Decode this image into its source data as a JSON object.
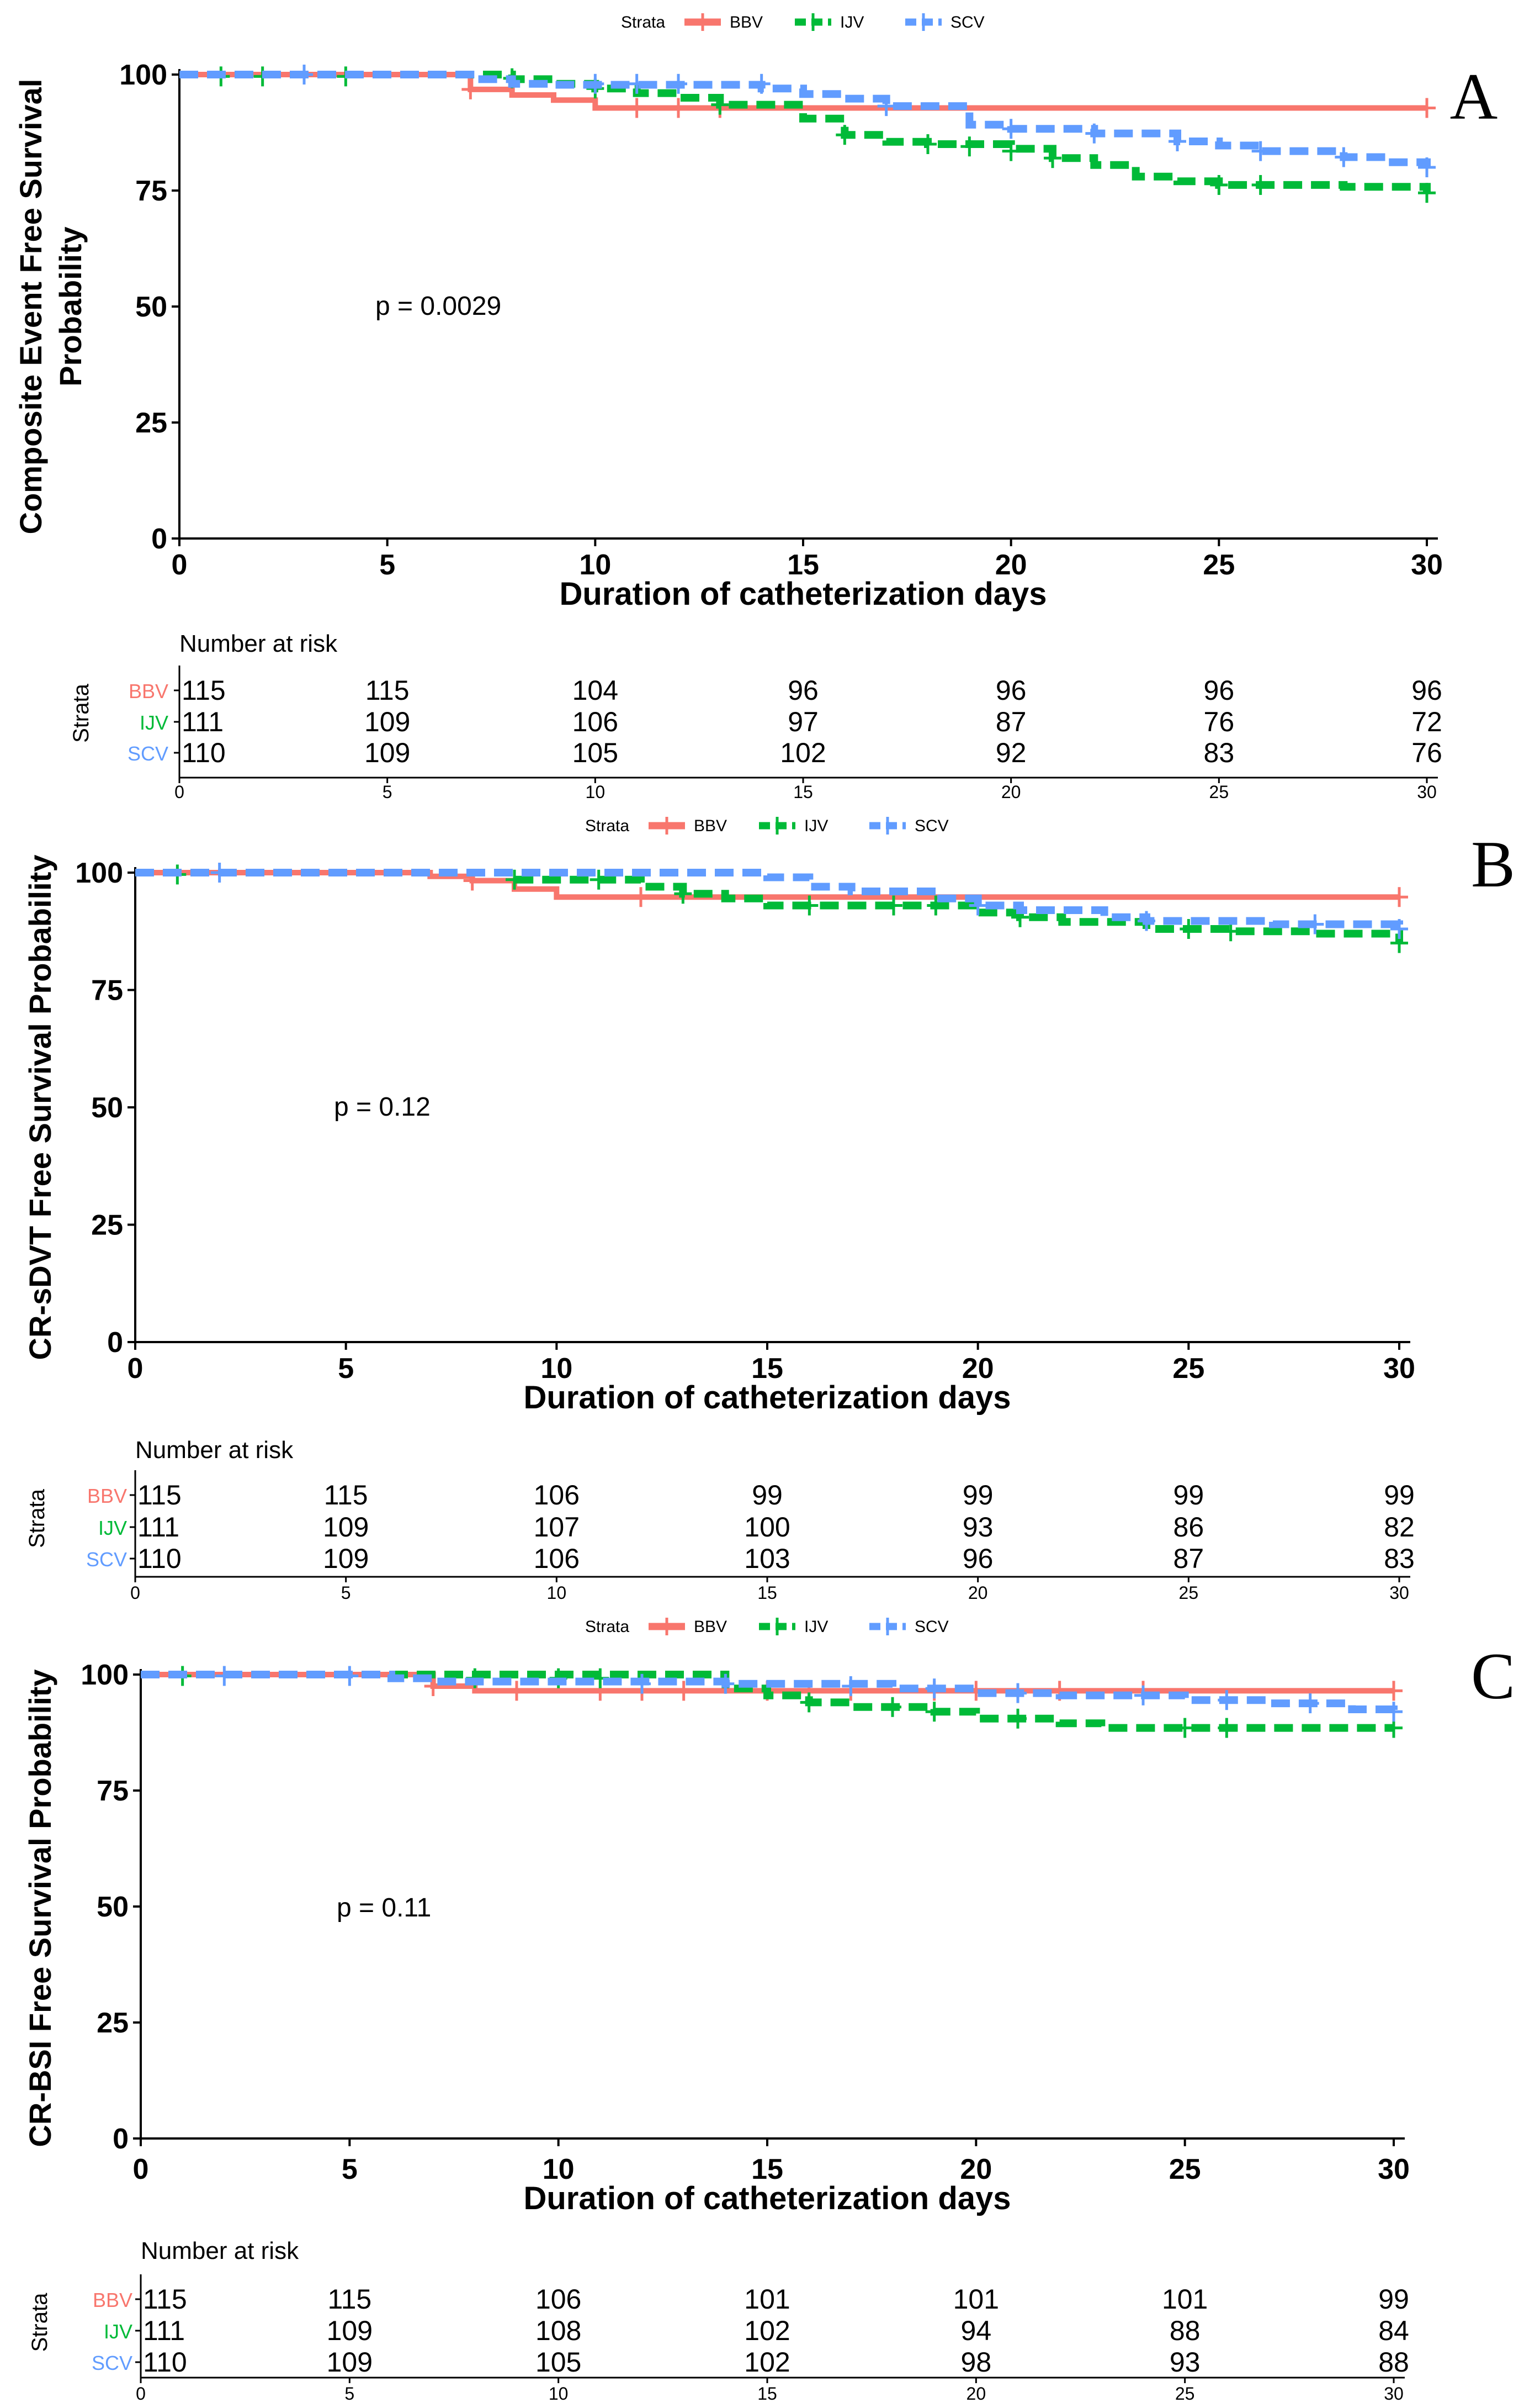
{
  "colors": {
    "BBV": "#F8766D",
    "IJV": "#00BA38",
    "SCV": "#619CFF"
  },
  "chart_data": [
    {
      "panel": "A",
      "type": "line",
      "title": "",
      "ylabel": "Composite Event Free Survival Probability",
      "ylabel_lines": [
        "Composite Event Free Survival",
        "Probability"
      ],
      "xlabel": "Duration of catheterization days",
      "xlim": [
        0,
        30
      ],
      "ylim": [
        0,
        100
      ],
      "xticks": [
        0,
        5,
        10,
        15,
        20,
        25,
        30
      ],
      "yticks": [
        0,
        25,
        50,
        75,
        100
      ],
      "pvalue": "p = 0.0029",
      "legend": {
        "title": "Strata",
        "entries": [
          "BBV",
          "IJV",
          "SCV"
        ],
        "position": "top"
      },
      "series": [
        {
          "name": "BBV",
          "style": "solid",
          "steps": [
            [
              0,
              100
            ],
            [
              7,
              96.8
            ],
            [
              8,
              95.6
            ],
            [
              9,
              94.5
            ],
            [
              10,
              92.8
            ],
            [
              30,
              92.8
            ]
          ],
          "censors": [
            [
              7,
              96.8
            ],
            [
              11,
              92.8
            ],
            [
              12,
              92.8
            ],
            [
              13,
              92.8
            ],
            [
              30,
              92.8
            ]
          ]
        },
        {
          "name": "IJV",
          "style": "dashed",
          "steps": [
            [
              0,
              100
            ],
            [
              8,
              99
            ],
            [
              9,
              98
            ],
            [
              10,
              97
            ],
            [
              11,
              96
            ],
            [
              12,
              95
            ],
            [
              13,
              93.5
            ],
            [
              15,
              90.5
            ],
            [
              16,
              87
            ],
            [
              17,
              85.5
            ],
            [
              18,
              85
            ],
            [
              20,
              84
            ],
            [
              21,
              82
            ],
            [
              22,
              80.5
            ],
            [
              23,
              78
            ],
            [
              24,
              77
            ],
            [
              25,
              76.2
            ],
            [
              27,
              76.2
            ],
            [
              28,
              75.8
            ],
            [
              30,
              74.5
            ]
          ],
          "censors": [
            [
              1,
              99.6
            ],
            [
              2,
              99.6
            ],
            [
              4,
              99.6
            ],
            [
              8,
              99.2
            ],
            [
              10,
              97
            ],
            [
              13,
              93.5
            ],
            [
              16,
              87
            ],
            [
              18,
              85
            ],
            [
              19,
              84.5
            ],
            [
              20,
              83.5
            ],
            [
              21,
              82
            ],
            [
              25,
              76.2
            ],
            [
              26,
              76.2
            ],
            [
              30,
              74.5
            ]
          ]
        },
        {
          "name": "SCV",
          "style": "dashed",
          "steps": [
            [
              0,
              100
            ],
            [
              7,
              99
            ],
            [
              8,
              98
            ],
            [
              9,
              97.8
            ],
            [
              14,
              97
            ],
            [
              15,
              95.8
            ],
            [
              16,
              94.8
            ],
            [
              17,
              93.2
            ],
            [
              19,
              89.2
            ],
            [
              20,
              88.3
            ],
            [
              22,
              87.3
            ],
            [
              24,
              85.6
            ],
            [
              25,
              84.7
            ],
            [
              26,
              83.5
            ],
            [
              28,
              82.2
            ],
            [
              29,
              81.1
            ],
            [
              30,
              80
            ]
          ],
          "censors": [
            [
              3,
              100
            ],
            [
              10,
              98
            ],
            [
              11,
              98
            ],
            [
              12,
              98
            ],
            [
              14,
              98
            ],
            [
              17,
              93.2
            ],
            [
              20,
              88.3
            ],
            [
              22,
              87.3
            ],
            [
              24,
              85.6
            ],
            [
              26,
              83.5
            ],
            [
              28,
              82.2
            ],
            [
              30,
              80
            ]
          ]
        }
      ],
      "risk_table": {
        "title": "Number at risk",
        "axis_label": "Strata",
        "times": [
          0,
          5,
          10,
          15,
          20,
          25,
          30
        ],
        "rows": [
          {
            "name": "BBV",
            "values": [
              115,
              115,
              104,
              96,
              96,
              96,
              96
            ]
          },
          {
            "name": "IJV",
            "values": [
              111,
              109,
              106,
              97,
              87,
              76,
              72
            ]
          },
          {
            "name": "SCV",
            "values": [
              110,
              109,
              105,
              102,
              92,
              83,
              76
            ]
          }
        ]
      }
    },
    {
      "panel": "B",
      "type": "line",
      "title": "",
      "ylabel": "CR-sDVT Free Survival Probability",
      "ylabel_lines": [
        "CR-sDVT Free Survival Probability"
      ],
      "xlabel": "Duration of catheterization days",
      "xlim": [
        0,
        30
      ],
      "ylim": [
        0,
        100
      ],
      "xticks": [
        0,
        5,
        10,
        15,
        20,
        25,
        30
      ],
      "yticks": [
        0,
        25,
        50,
        75,
        100
      ],
      "pvalue": "p = 0.12",
      "legend": {
        "title": "Strata",
        "entries": [
          "BBV",
          "IJV",
          "SCV"
        ],
        "position": "top"
      },
      "series": [
        {
          "name": "BBV",
          "style": "solid",
          "steps": [
            [
              0,
              100
            ],
            [
              7,
              99.2
            ],
            [
              8,
              98.3
            ],
            [
              9,
              96.5
            ],
            [
              10,
              94.8
            ],
            [
              30,
              94.8
            ]
          ],
          "censors": [
            [
              8,
              98.3
            ],
            [
              12,
              94.8
            ],
            [
              30,
              94.8
            ]
          ]
        },
        {
          "name": "IJV",
          "style": "dashed",
          "steps": [
            [
              0,
              100
            ],
            [
              9,
              98.5
            ],
            [
              12,
              97
            ],
            [
              13,
              95.5
            ],
            [
              14,
              94.5
            ],
            [
              15,
              93
            ],
            [
              20,
              91.5
            ],
            [
              21,
              90.5
            ],
            [
              22,
              89.5
            ],
            [
              24,
              88
            ],
            [
              26,
              87.5
            ],
            [
              28,
              87
            ],
            [
              30,
              85
            ]
          ],
          "censors": [
            [
              1,
              99.6
            ],
            [
              9,
              98.5
            ],
            [
              11,
              98.5
            ],
            [
              13,
              95.5
            ],
            [
              16,
              93
            ],
            [
              18,
              93
            ],
            [
              19,
              93
            ],
            [
              21,
              90.5
            ],
            [
              25,
              88
            ],
            [
              26,
              87.5
            ],
            [
              30,
              85
            ]
          ]
        },
        {
          "name": "SCV",
          "style": "dashed",
          "steps": [
            [
              0,
              100
            ],
            [
              15,
              99
            ],
            [
              16,
              97
            ],
            [
              17,
              96
            ],
            [
              19,
              94.5
            ],
            [
              20,
              93
            ],
            [
              21,
              92
            ],
            [
              23,
              90.5
            ],
            [
              24,
              89.7
            ],
            [
              27,
              89
            ],
            [
              30,
              88
            ]
          ],
          "censors": [
            [
              2,
              100
            ],
            [
              20,
              93
            ],
            [
              24,
              89.7
            ],
            [
              28,
              89
            ],
            [
              30,
              88
            ]
          ]
        }
      ],
      "risk_table": {
        "title": "Number at risk",
        "axis_label": "Strata",
        "times": [
          0,
          5,
          10,
          15,
          20,
          25,
          30
        ],
        "rows": [
          {
            "name": "BBV",
            "values": [
              115,
              115,
              106,
              99,
              99,
              99,
              99
            ]
          },
          {
            "name": "IJV",
            "values": [
              111,
              109,
              107,
              100,
              93,
              86,
              82
            ]
          },
          {
            "name": "SCV",
            "values": [
              110,
              109,
              106,
              103,
              96,
              87,
              83
            ]
          }
        ]
      }
    },
    {
      "panel": "C",
      "type": "line",
      "title": "",
      "ylabel": "CR-BSI Free Survival Probability",
      "ylabel_lines": [
        "CR-BSI Free Survival Probability"
      ],
      "xlabel": "Duration of catheterization days",
      "xlim": [
        0,
        30
      ],
      "ylim": [
        0,
        100
      ],
      "xticks": [
        0,
        5,
        10,
        15,
        20,
        25,
        30
      ],
      "yticks": [
        0,
        25,
        50,
        75,
        100
      ],
      "pvalue": "p = 0.11",
      "legend": {
        "title": "Strata",
        "entries": [
          "BBV",
          "IJV",
          "SCV"
        ],
        "position": "top"
      },
      "series": [
        {
          "name": "BBV",
          "style": "solid",
          "steps": [
            [
              0,
              100
            ],
            [
              7,
              97.5
            ],
            [
              8,
              96.5
            ],
            [
              30,
              96.5
            ]
          ],
          "censors": [
            [
              7,
              97.5
            ],
            [
              9,
              96.5
            ],
            [
              11,
              96.5
            ],
            [
              12,
              96.5
            ],
            [
              13,
              96.5
            ],
            [
              15,
              96.5
            ],
            [
              16,
              96.5
            ],
            [
              17,
              96.5
            ],
            [
              19,
              96.5
            ],
            [
              20,
              96.5
            ],
            [
              22,
              96.5
            ],
            [
              24,
              96.5
            ],
            [
              30,
              96.5
            ]
          ]
        },
        {
          "name": "IJV",
          "style": "dashed",
          "steps": [
            [
              0,
              100
            ],
            [
              14,
              97
            ],
            [
              15,
              95.5
            ],
            [
              16,
              94
            ],
            [
              17,
              93
            ],
            [
              19,
              92
            ],
            [
              20,
              90.5
            ],
            [
              22,
              89.5
            ],
            [
              23,
              88.5
            ],
            [
              30,
              88.5
            ]
          ],
          "censors": [
            [
              1,
              99.7
            ],
            [
              8,
              99.2
            ],
            [
              10,
              99.2
            ],
            [
              11,
              99.2
            ],
            [
              16,
              94
            ],
            [
              18,
              93
            ],
            [
              19,
              92
            ],
            [
              21,
              90.5
            ],
            [
              25,
              88.5
            ],
            [
              26,
              88.5
            ],
            [
              30,
              88.5
            ]
          ]
        },
        {
          "name": "SCV",
          "style": "dashed",
          "steps": [
            [
              0,
              100
            ],
            [
              6,
              99.2
            ],
            [
              7,
              98.5
            ],
            [
              14,
              98
            ],
            [
              18,
              97
            ],
            [
              20,
              96
            ],
            [
              22,
              95.5
            ],
            [
              25,
              94.5
            ],
            [
              27,
              93.8
            ],
            [
              29,
              92.5
            ],
            [
              30,
              92
            ]
          ],
          "censors": [
            [
              2,
              99.7
            ],
            [
              5,
              99.7
            ],
            [
              12,
              98
            ],
            [
              14,
              98
            ],
            [
              17,
              97.5
            ],
            [
              19,
              97
            ],
            [
              21,
              96
            ],
            [
              24,
              95.5
            ],
            [
              26,
              94.5
            ],
            [
              28,
              93.8
            ],
            [
              30,
              92
            ]
          ]
        }
      ],
      "risk_table": {
        "title": "Number at risk",
        "axis_label": "Strata",
        "times": [
          0,
          5,
          10,
          15,
          20,
          25,
          30
        ],
        "rows": [
          {
            "name": "BBV",
            "values": [
              115,
              115,
              106,
              101,
              101,
              101,
              99
            ]
          },
          {
            "name": "IJV",
            "values": [
              111,
              109,
              108,
              102,
              94,
              88,
              84
            ]
          },
          {
            "name": "SCV",
            "values": [
              110,
              109,
              105,
              102,
              98,
              93,
              88
            ]
          }
        ]
      }
    }
  ]
}
